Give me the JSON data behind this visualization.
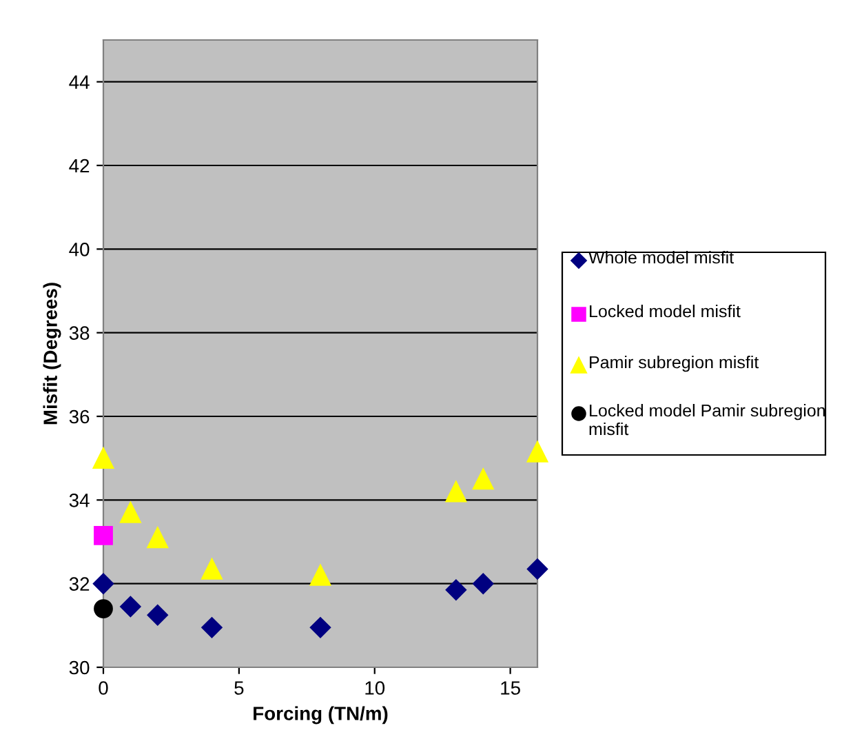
{
  "chart_data": {
    "type": "scatter",
    "xlabel": "Forcing (TN/m)",
    "ylabel": "Misfit (Degrees)",
    "xlim": [
      0,
      16
    ],
    "xticks": [
      0,
      5,
      10,
      15
    ],
    "ylim": [
      30,
      45
    ],
    "yticks": [
      30,
      32,
      34,
      36,
      38,
      40,
      42,
      44
    ],
    "grid": "y",
    "legend": "right",
    "series": [
      {
        "name": "Whole model misfit",
        "color": "#000080",
        "marker": "diamond",
        "x": [
          0,
          1,
          2,
          4,
          8,
          13,
          14,
          16
        ],
        "values": [
          32.0,
          31.45,
          31.25,
          30.95,
          30.95,
          31.85,
          32.0,
          32.35
        ]
      },
      {
        "name": "Locked model misfit",
        "color": "#ff00ff",
        "marker": "square",
        "x": [
          0
        ],
        "values": [
          33.15
        ]
      },
      {
        "name": "Pamir subregion misfit",
        "color": "#ffff00",
        "marker": "triangle",
        "x": [
          0,
          1,
          2,
          4,
          8,
          13,
          14,
          16
        ],
        "values": [
          35.0,
          33.7,
          33.1,
          32.35,
          32.2,
          34.2,
          34.5,
          35.15
        ]
      },
      {
        "name": "Locked model Pamir subregion misfit",
        "color": "#000000",
        "marker": "circle",
        "x": [
          0
        ],
        "values": [
          31.4
        ]
      }
    ]
  }
}
